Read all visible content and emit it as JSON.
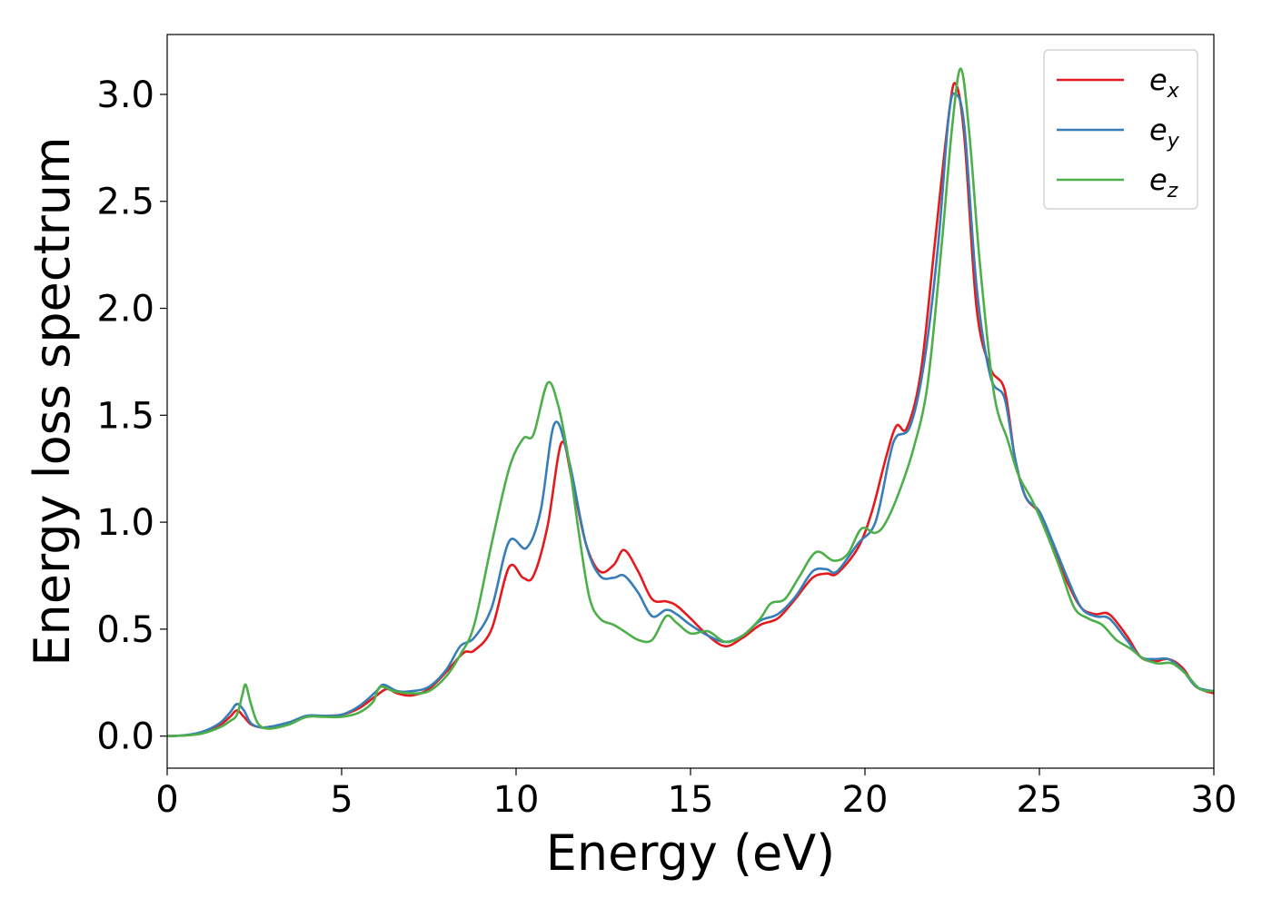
{
  "chart_data": {
    "type": "line",
    "title": "",
    "xlabel": "Energy (eV)",
    "ylabel": "Energy loss spectrum",
    "xlim": [
      0,
      30
    ],
    "ylim": [
      -0.15,
      3.28
    ],
    "xticks": [
      0,
      5,
      10,
      15,
      20,
      25,
      30
    ],
    "xtick_labels": [
      "0",
      "5",
      "10",
      "15",
      "20",
      "25",
      "30"
    ],
    "yticks": [
      0.0,
      0.5,
      1.0,
      1.5,
      2.0,
      2.5,
      3.0
    ],
    "ytick_labels": [
      "0.0",
      "0.5",
      "1.0",
      "1.5",
      "2.0",
      "2.5",
      "3.0"
    ],
    "grid": false,
    "legend_position": "top-right",
    "series": [
      {
        "name": "e_x",
        "name_base": "e",
        "name_sub": "x",
        "color": "#e41a1c",
        "points": [
          [
            0,
            0
          ],
          [
            0.5,
            0.003
          ],
          [
            1,
            0.015
          ],
          [
            1.5,
            0.05
          ],
          [
            1.8,
            0.09
          ],
          [
            2.0,
            0.12
          ],
          [
            2.2,
            0.09
          ],
          [
            2.4,
            0.055
          ],
          [
            2.7,
            0.04
          ],
          [
            3,
            0.045
          ],
          [
            3.5,
            0.06
          ],
          [
            4,
            0.09
          ],
          [
            4.5,
            0.095
          ],
          [
            5,
            0.1
          ],
          [
            5.5,
            0.13
          ],
          [
            6,
            0.19
          ],
          [
            6.3,
            0.22
          ],
          [
            6.6,
            0.2
          ],
          [
            7,
            0.19
          ],
          [
            7.5,
            0.22
          ],
          [
            8,
            0.3
          ],
          [
            8.5,
            0.39
          ],
          [
            8.8,
            0.4
          ],
          [
            9.3,
            0.5
          ],
          [
            9.8,
            0.79
          ],
          [
            10.2,
            0.74
          ],
          [
            10.5,
            0.75
          ],
          [
            10.9,
            0.98
          ],
          [
            11.3,
            1.37
          ],
          [
            11.6,
            1.2
          ],
          [
            12,
            0.9
          ],
          [
            12.4,
            0.77
          ],
          [
            12.8,
            0.8
          ],
          [
            13.1,
            0.87
          ],
          [
            13.5,
            0.77
          ],
          [
            13.9,
            0.64
          ],
          [
            14.3,
            0.63
          ],
          [
            14.6,
            0.61
          ],
          [
            15,
            0.55
          ],
          [
            15.5,
            0.47
          ],
          [
            16,
            0.42
          ],
          [
            16.5,
            0.46
          ],
          [
            17,
            0.52
          ],
          [
            17.5,
            0.55
          ],
          [
            18,
            0.64
          ],
          [
            18.5,
            0.74
          ],
          [
            18.9,
            0.76
          ],
          [
            19.2,
            0.76
          ],
          [
            19.8,
            0.88
          ],
          [
            20.2,
            1.05
          ],
          [
            20.6,
            1.3
          ],
          [
            20.9,
            1.45
          ],
          [
            21.2,
            1.44
          ],
          [
            21.6,
            1.7
          ],
          [
            22,
            2.3
          ],
          [
            22.4,
            2.9
          ],
          [
            22.6,
            3.05
          ],
          [
            22.85,
            2.8
          ],
          [
            23.2,
            2.0
          ],
          [
            23.6,
            1.72
          ],
          [
            24,
            1.62
          ],
          [
            24.3,
            1.3
          ],
          [
            24.6,
            1.12
          ],
          [
            25,
            1.04
          ],
          [
            25.4,
            0.88
          ],
          [
            25.8,
            0.72
          ],
          [
            26.2,
            0.6
          ],
          [
            26.6,
            0.57
          ],
          [
            27,
            0.57
          ],
          [
            27.5,
            0.47
          ],
          [
            27.9,
            0.37
          ],
          [
            28.3,
            0.35
          ],
          [
            28.7,
            0.36
          ],
          [
            29.1,
            0.32
          ],
          [
            29.5,
            0.23
          ],
          [
            30,
            0.2
          ]
        ]
      },
      {
        "name": "e_y",
        "name_base": "e",
        "name_sub": "y",
        "color": "#377eb8",
        "points": [
          [
            0,
            0
          ],
          [
            0.5,
            0.004
          ],
          [
            1,
            0.02
          ],
          [
            1.5,
            0.06
          ],
          [
            1.8,
            0.11
          ],
          [
            2.0,
            0.15
          ],
          [
            2.2,
            0.12
          ],
          [
            2.4,
            0.06
          ],
          [
            2.7,
            0.04
          ],
          [
            3,
            0.045
          ],
          [
            3.5,
            0.065
          ],
          [
            4,
            0.095
          ],
          [
            4.5,
            0.095
          ],
          [
            5,
            0.1
          ],
          [
            5.5,
            0.14
          ],
          [
            6,
            0.21
          ],
          [
            6.2,
            0.24
          ],
          [
            6.6,
            0.21
          ],
          [
            7,
            0.21
          ],
          [
            7.5,
            0.23
          ],
          [
            8,
            0.31
          ],
          [
            8.4,
            0.42
          ],
          [
            8.8,
            0.46
          ],
          [
            9.3,
            0.6
          ],
          [
            9.8,
            0.91
          ],
          [
            10.3,
            0.88
          ],
          [
            10.7,
            1.05
          ],
          [
            11.1,
            1.46
          ],
          [
            11.5,
            1.3
          ],
          [
            12,
            0.9
          ],
          [
            12.4,
            0.75
          ],
          [
            12.8,
            0.74
          ],
          [
            13.1,
            0.75
          ],
          [
            13.5,
            0.67
          ],
          [
            13.9,
            0.56
          ],
          [
            14.3,
            0.59
          ],
          [
            14.6,
            0.57
          ],
          [
            15,
            0.52
          ],
          [
            15.5,
            0.47
          ],
          [
            16,
            0.44
          ],
          [
            16.5,
            0.47
          ],
          [
            17,
            0.54
          ],
          [
            17.5,
            0.57
          ],
          [
            18,
            0.65
          ],
          [
            18.5,
            0.77
          ],
          [
            18.9,
            0.78
          ],
          [
            19.2,
            0.77
          ],
          [
            19.8,
            0.9
          ],
          [
            20.3,
            1.0
          ],
          [
            20.7,
            1.3
          ],
          [
            20.9,
            1.4
          ],
          [
            21.3,
            1.45
          ],
          [
            21.7,
            1.75
          ],
          [
            22.1,
            2.3
          ],
          [
            22.4,
            2.9
          ],
          [
            22.6,
            3.0
          ],
          [
            22.85,
            2.85
          ],
          [
            23.2,
            2.1
          ],
          [
            23.6,
            1.68
          ],
          [
            24,
            1.58
          ],
          [
            24.3,
            1.3
          ],
          [
            24.6,
            1.12
          ],
          [
            25,
            1.05
          ],
          [
            25.4,
            0.9
          ],
          [
            25.8,
            0.74
          ],
          [
            26.2,
            0.6
          ],
          [
            26.6,
            0.56
          ],
          [
            27,
            0.55
          ],
          [
            27.5,
            0.45
          ],
          [
            27.9,
            0.37
          ],
          [
            28.3,
            0.36
          ],
          [
            28.7,
            0.36
          ],
          [
            29.1,
            0.31
          ],
          [
            29.5,
            0.23
          ],
          [
            30,
            0.21
          ]
        ]
      },
      {
        "name": "e_z",
        "name_base": "e",
        "name_sub": "z",
        "color": "#4daf4a",
        "points": [
          [
            0,
            0
          ],
          [
            0.5,
            0.003
          ],
          [
            1,
            0.012
          ],
          [
            1.5,
            0.04
          ],
          [
            1.8,
            0.07
          ],
          [
            2.0,
            0.1
          ],
          [
            2.15,
            0.19
          ],
          [
            2.25,
            0.24
          ],
          [
            2.4,
            0.15
          ],
          [
            2.6,
            0.06
          ],
          [
            2.9,
            0.035
          ],
          [
            3.5,
            0.055
          ],
          [
            4,
            0.09
          ],
          [
            4.5,
            0.09
          ],
          [
            5,
            0.09
          ],
          [
            5.5,
            0.11
          ],
          [
            5.9,
            0.16
          ],
          [
            6.1,
            0.23
          ],
          [
            6.5,
            0.21
          ],
          [
            7,
            0.2
          ],
          [
            7.5,
            0.21
          ],
          [
            8,
            0.28
          ],
          [
            8.4,
            0.38
          ],
          [
            8.8,
            0.52
          ],
          [
            9.3,
            0.9
          ],
          [
            9.8,
            1.25
          ],
          [
            10.2,
            1.39
          ],
          [
            10.5,
            1.41
          ],
          [
            10.9,
            1.65
          ],
          [
            11.2,
            1.55
          ],
          [
            11.5,
            1.3
          ],
          [
            11.8,
            0.95
          ],
          [
            12.1,
            0.65
          ],
          [
            12.4,
            0.55
          ],
          [
            12.8,
            0.52
          ],
          [
            13.1,
            0.49
          ],
          [
            13.5,
            0.45
          ],
          [
            13.9,
            0.45
          ],
          [
            14.3,
            0.56
          ],
          [
            14.6,
            0.53
          ],
          [
            15,
            0.48
          ],
          [
            15.5,
            0.49
          ],
          [
            16,
            0.44
          ],
          [
            16.5,
            0.47
          ],
          [
            17,
            0.55
          ],
          [
            17.3,
            0.62
          ],
          [
            17.7,
            0.64
          ],
          [
            18.1,
            0.74
          ],
          [
            18.6,
            0.86
          ],
          [
            19.1,
            0.82
          ],
          [
            19.5,
            0.85
          ],
          [
            19.9,
            0.97
          ],
          [
            20.3,
            0.95
          ],
          [
            20.6,
            1.0
          ],
          [
            21.0,
            1.15
          ],
          [
            21.4,
            1.35
          ],
          [
            21.8,
            1.65
          ],
          [
            22.2,
            2.3
          ],
          [
            22.5,
            2.85
          ],
          [
            22.75,
            3.12
          ],
          [
            23.0,
            2.8
          ],
          [
            23.3,
            2.2
          ],
          [
            23.7,
            1.6
          ],
          [
            24.1,
            1.38
          ],
          [
            24.4,
            1.22
          ],
          [
            24.8,
            1.1
          ],
          [
            25.2,
            0.95
          ],
          [
            25.6,
            0.78
          ],
          [
            26.0,
            0.6
          ],
          [
            26.4,
            0.55
          ],
          [
            26.8,
            0.52
          ],
          [
            27.2,
            0.45
          ],
          [
            27.6,
            0.41
          ],
          [
            28.0,
            0.36
          ],
          [
            28.4,
            0.34
          ],
          [
            28.8,
            0.34
          ],
          [
            29.2,
            0.29
          ],
          [
            29.6,
            0.22
          ],
          [
            30,
            0.21
          ]
        ]
      }
    ]
  }
}
